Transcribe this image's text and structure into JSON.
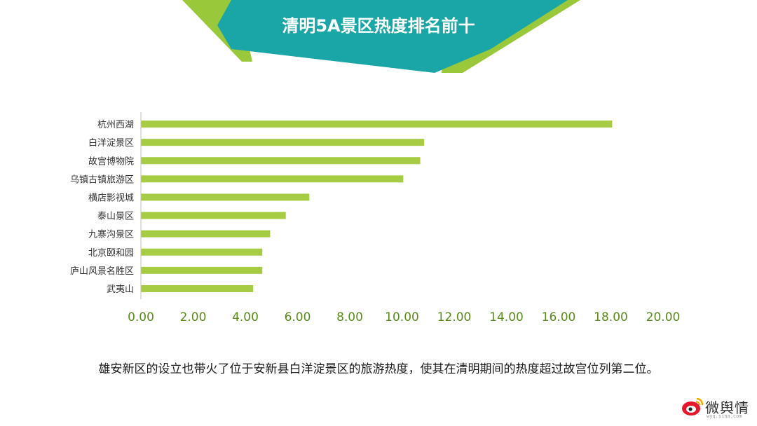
{
  "banner": {
    "title": "清明5A景区热度排名前十"
  },
  "chart_data": {
    "type": "bar",
    "orientation": "horizontal",
    "categories": [
      "杭州西湖",
      "白洋淀景区",
      "故宫博物院",
      "乌镇古镇旅游区",
      "横店影视城",
      "泰山景区",
      "九寨沟景区",
      "北京颐和园",
      "庐山风景名胜区",
      "武夷山"
    ],
    "values": [
      18.05,
      10.85,
      10.7,
      10.05,
      6.45,
      5.55,
      4.95,
      4.65,
      4.65,
      4.3
    ],
    "xticks": [
      "0.00",
      "2.00",
      "4.00",
      "6.00",
      "8.00",
      "10.00",
      "12.00",
      "14.00",
      "16.00",
      "18.00",
      "20.00"
    ],
    "xlim": [
      0,
      20
    ],
    "grid": false,
    "bar_color": "#a6cc44"
  },
  "caption": "雄安新区的设立也带火了位于安新县白洋淀景区的旅游热度，使其在清明期间的热度超过故宫位列第二位。",
  "logo": {
    "text": "微舆情",
    "sub": "wyq.sina.com",
    "icon": "weibo-eye-icon"
  },
  "colors": {
    "teal": "#1aa5a6",
    "green": "#99c93b",
    "axis_text": "#5a8a1a"
  }
}
